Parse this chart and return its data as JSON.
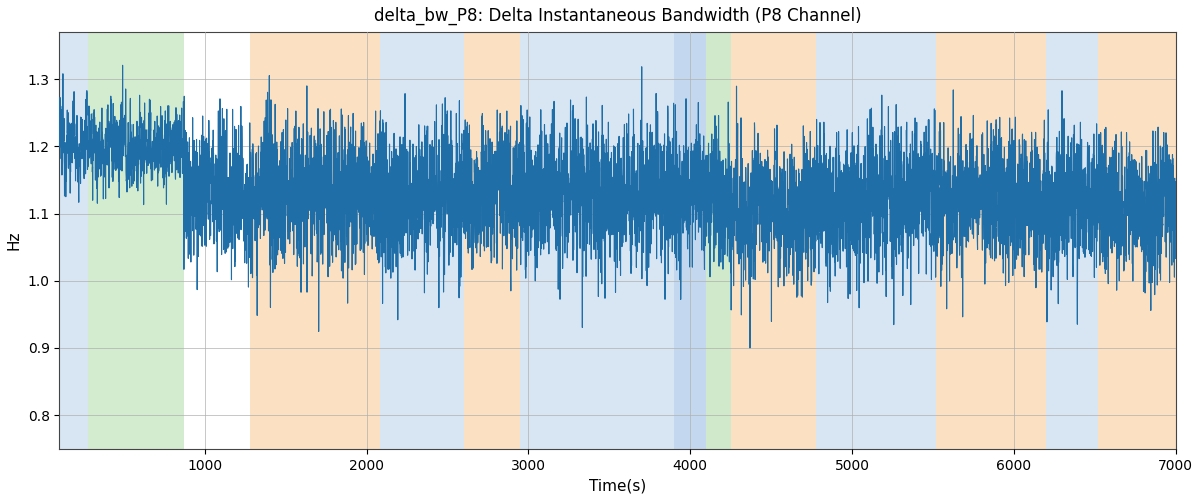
{
  "title": "delta_bw_P8: Delta Instantaneous Bandwidth (P8 Channel)",
  "xlabel": "Time(s)",
  "ylabel": "Hz",
  "xlim": [
    100,
    7000
  ],
  "ylim": [
    0.75,
    1.37
  ],
  "line_color": "#1f6ea8",
  "line_width": 0.8,
  "bands": [
    {
      "xmin": 100,
      "xmax": 280,
      "color": "#aac8e8",
      "alpha": 0.45
    },
    {
      "xmin": 280,
      "xmax": 870,
      "color": "#a8d8a0",
      "alpha": 0.5
    },
    {
      "xmin": 1280,
      "xmax": 2080,
      "color": "#f8c890",
      "alpha": 0.55
    },
    {
      "xmin": 2080,
      "xmax": 2600,
      "color": "#aac8e8",
      "alpha": 0.45
    },
    {
      "xmin": 2600,
      "xmax": 2950,
      "color": "#f8c890",
      "alpha": 0.55
    },
    {
      "xmin": 2950,
      "xmax": 3900,
      "color": "#aac8e8",
      "alpha": 0.45
    },
    {
      "xmin": 3900,
      "xmax": 4100,
      "color": "#aac8e8",
      "alpha": 0.7
    },
    {
      "xmin": 4100,
      "xmax": 4250,
      "color": "#a8d8a0",
      "alpha": 0.55
    },
    {
      "xmin": 4250,
      "xmax": 4780,
      "color": "#f8c890",
      "alpha": 0.55
    },
    {
      "xmin": 4780,
      "xmax": 5520,
      "color": "#aac8e8",
      "alpha": 0.45
    },
    {
      "xmin": 5520,
      "xmax": 6200,
      "color": "#f8c890",
      "alpha": 0.55
    },
    {
      "xmin": 6200,
      "xmax": 6520,
      "color": "#aac8e8",
      "alpha": 0.45
    },
    {
      "xmin": 6520,
      "xmax": 7000,
      "color": "#f8c890",
      "alpha": 0.55
    }
  ],
  "xticks": [
    1000,
    2000,
    3000,
    4000,
    5000,
    6000,
    7000
  ],
  "yticks": [
    0.8,
    0.9,
    1.0,
    1.1,
    1.2,
    1.3
  ],
  "figsize": [
    12.0,
    5.0
  ],
  "dpi": 100
}
